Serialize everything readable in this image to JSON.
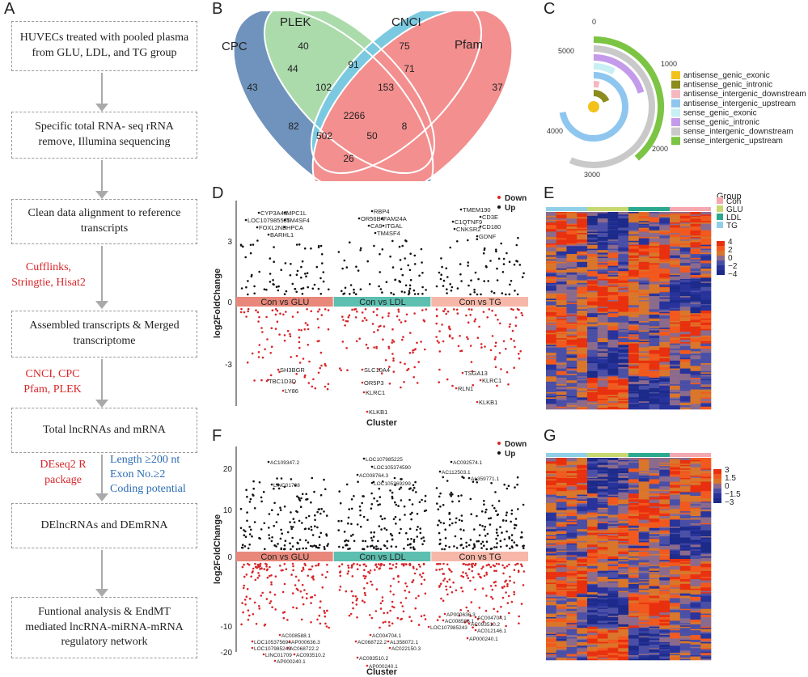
{
  "panels": {
    "A": "A",
    "B": "B",
    "C": "C",
    "D": "D",
    "E": "E",
    "F": "F",
    "G": "G"
  },
  "flow": {
    "boxes": [
      "HUVECs treated with pooled plasma from GLU, LDL, and TG group",
      "Specific total RNA- seq rRNA remove, Illumina sequencing",
      "Clean data alignment to reference transcripts",
      "Assembled transcripts & Merged transcriptome",
      "Total lncRNAs and mRNA",
      "DElncRNAs and DEmRNA",
      "Funtional analysis & EndMT mediated lncRNA-miRNA-mRNA regulatory network"
    ],
    "tools1": "Cufflinks, Stringtie, Hisat2",
    "tools2": "CNCI, CPC Pfam, PLEK",
    "tools3": "DEseq2 R package",
    "criteria": [
      "Length ≥200 nt",
      "Exon No.≥2",
      "Coding potential"
    ]
  },
  "venn": {
    "sets": [
      "CPC",
      "PLEK",
      "CNCI",
      "Pfam"
    ],
    "colors": [
      "#3f6fa8",
      "#8fcf8f",
      "#4fb8d8",
      "#f06a6a"
    ],
    "counts": {
      "cpc_only": "43",
      "plek_only": "40",
      "cnci_only": "75",
      "pfam_only": "37",
      "cpc_plek": "44",
      "plek_cnci": "91",
      "cnci_pfam": "71",
      "cpc_plek_cnci": "102",
      "plek_cnci_pfam": "153",
      "all": "2266",
      "cpc_cnci": "82",
      "plek_pfam": "8",
      "cpc_cnci_pfam": "502",
      "cpc_plek_pfam": "50",
      "cpc_pfam": "26"
    }
  },
  "radial": {
    "ticks": [
      "0",
      "1000",
      "2000",
      "3000",
      "4000",
      "5000"
    ],
    "legend": [
      {
        "label": "antisense_genic_exonic",
        "color": "#f2c21b",
        "value": 150
      },
      {
        "label": "antisense_genic_intronic",
        "color": "#8c8c1f",
        "value": 1000
      },
      {
        "label": "antisense_intergenic_downstream",
        "color": "#f5b8c0",
        "value": 200
      },
      {
        "label": "antisense_intergenic_upstream",
        "color": "#8ec6ef",
        "value": 3900
      },
      {
        "label": "sense_genic_exonic",
        "color": "#c8f0f4",
        "value": 450
      },
      {
        "label": "sense_genic_intronic",
        "color": "#c49bea",
        "value": 1100
      },
      {
        "label": "sense_intergenic_downstream",
        "color": "#c9c9c9",
        "value": 3050
      },
      {
        "label": "sense_intergenic_upstream",
        "color": "#7cc443",
        "value": 2100
      }
    ]
  },
  "volcanoD": {
    "ylabel": "log2FoldChange",
    "xlabel": "Cluster",
    "yticks": [
      "3",
      "0",
      "-3"
    ],
    "legend": [
      "Down",
      "Up"
    ],
    "groups": [
      "Con vs GLU",
      "Con vs LDL",
      "Con vs TG"
    ],
    "genes": [
      "CYP3A43",
      "MPC1L",
      "LOC107985535",
      "TM4SF4",
      "FOXL2NB",
      "HPCA",
      "BARHL1",
      "RBP4",
      "OR56B4",
      "FAM24A",
      "CA9",
      "ITGAL",
      "TM4SF4",
      "TMEM190",
      "CD3E",
      "C1QTNF9",
      "CD180",
      "CNKSR2",
      "GDNF",
      "SH3BGR",
      "TBC1D3D",
      "LY86",
      "SLC10A4",
      "OR5P3",
      "KLRC1",
      "KLKB1",
      "TSGA13",
      "KLRC1",
      "RLN1",
      "KLKB1"
    ]
  },
  "volcanoF": {
    "ylabel": "log2FoldChange",
    "xlabel": "Cluster",
    "yticks": [
      "20",
      "10",
      "0",
      "-10",
      "-20"
    ],
    "legend": [
      "Down",
      "Up"
    ],
    "groups": [
      "Con vs GLU",
      "Con vs LDL",
      "Con vs TG"
    ],
    "genes": [
      "AC109347.2",
      "LINC01708",
      "LOC107985225",
      "LOC105374590",
      "AC008764.3",
      "LOC105369299",
      "AC092574.1",
      "AC112503.1",
      "AL359771.1",
      "AC008588.1",
      "LOC105375694",
      "AP000636.3",
      "LOC107985243",
      "AC068722.2",
      "LINC01709",
      "AC093510.2",
      "AP000240.1",
      "AC004704.1",
      "AC068722.2",
      "AL358072.1",
      "AC022150.3",
      "AC093510.2",
      "AP000240.1",
      "AP000636.3",
      "AC008588.1",
      "AC004704.1",
      "LOC107985243",
      "AC093510.2",
      "AC012146.1",
      "AP000240.1"
    ]
  },
  "heatmapE": {
    "legend_title": "Group",
    "groups": [
      "Con",
      "GLU",
      "LDL",
      "TG"
    ],
    "scale": [
      "4",
      "2",
      "0",
      "−2",
      "−4"
    ]
  },
  "heatmapG": {
    "scale": [
      "3",
      "1.5",
      "0",
      "−1.5",
      "−3"
    ]
  }
}
